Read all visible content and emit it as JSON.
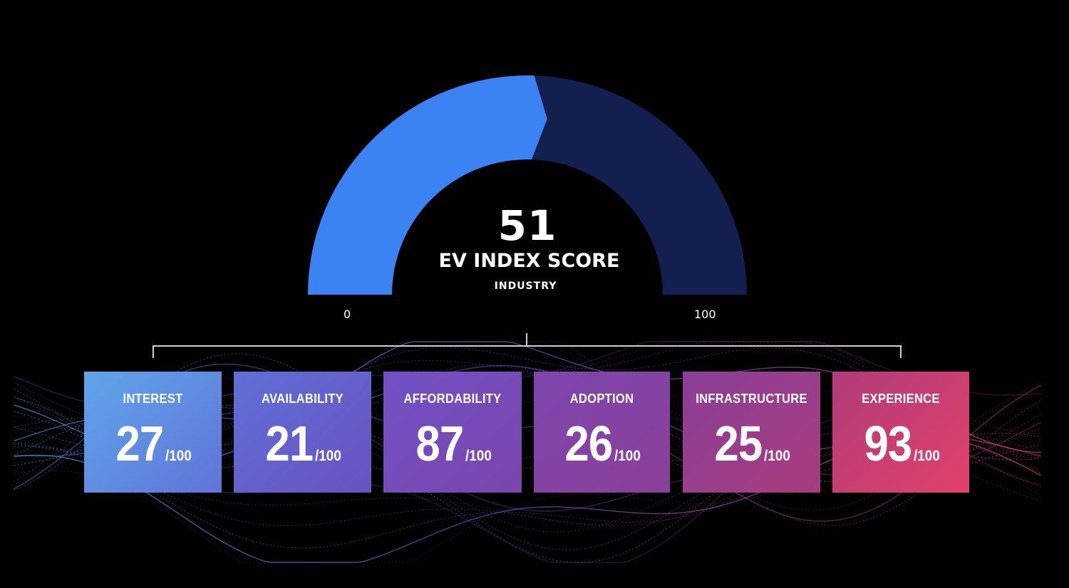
{
  "gauge": {
    "value": "51",
    "score": 51,
    "max_score": 100,
    "title": "EV INDEX SCORE",
    "subtitle": "INDUSTRY",
    "min_label": "0",
    "max_label": "100",
    "fill_color": "#3b82f3",
    "track_color": "#13204f"
  },
  "categories": [
    {
      "label": "INTEREST",
      "value": "27",
      "max": "/100",
      "color_from": "#60a5e9",
      "color_to": "#5f74d9"
    },
    {
      "label": "AVAILABILITY",
      "value": "21",
      "max": "/100",
      "color_from": "#5f70d6",
      "color_to": "#6a51c1"
    },
    {
      "label": "AFFORDABILITY",
      "value": "87",
      "max": "/100",
      "color_from": "#7152c6",
      "color_to": "#7b45ac"
    },
    {
      "label": "ADOPTION",
      "value": "26",
      "max": "/100",
      "color_from": "#7d46ae",
      "color_to": "#8b3f98"
    },
    {
      "label": "INFRASTRUCTURE",
      "value": "25",
      "max": "/100",
      "color_from": "#8a3f97",
      "color_to": "#a83c7e"
    },
    {
      "label": "EXPERIENCE",
      "value": "93",
      "max": "/100",
      "color_from": "#b03c7a",
      "color_to": "#e2416a"
    }
  ]
}
